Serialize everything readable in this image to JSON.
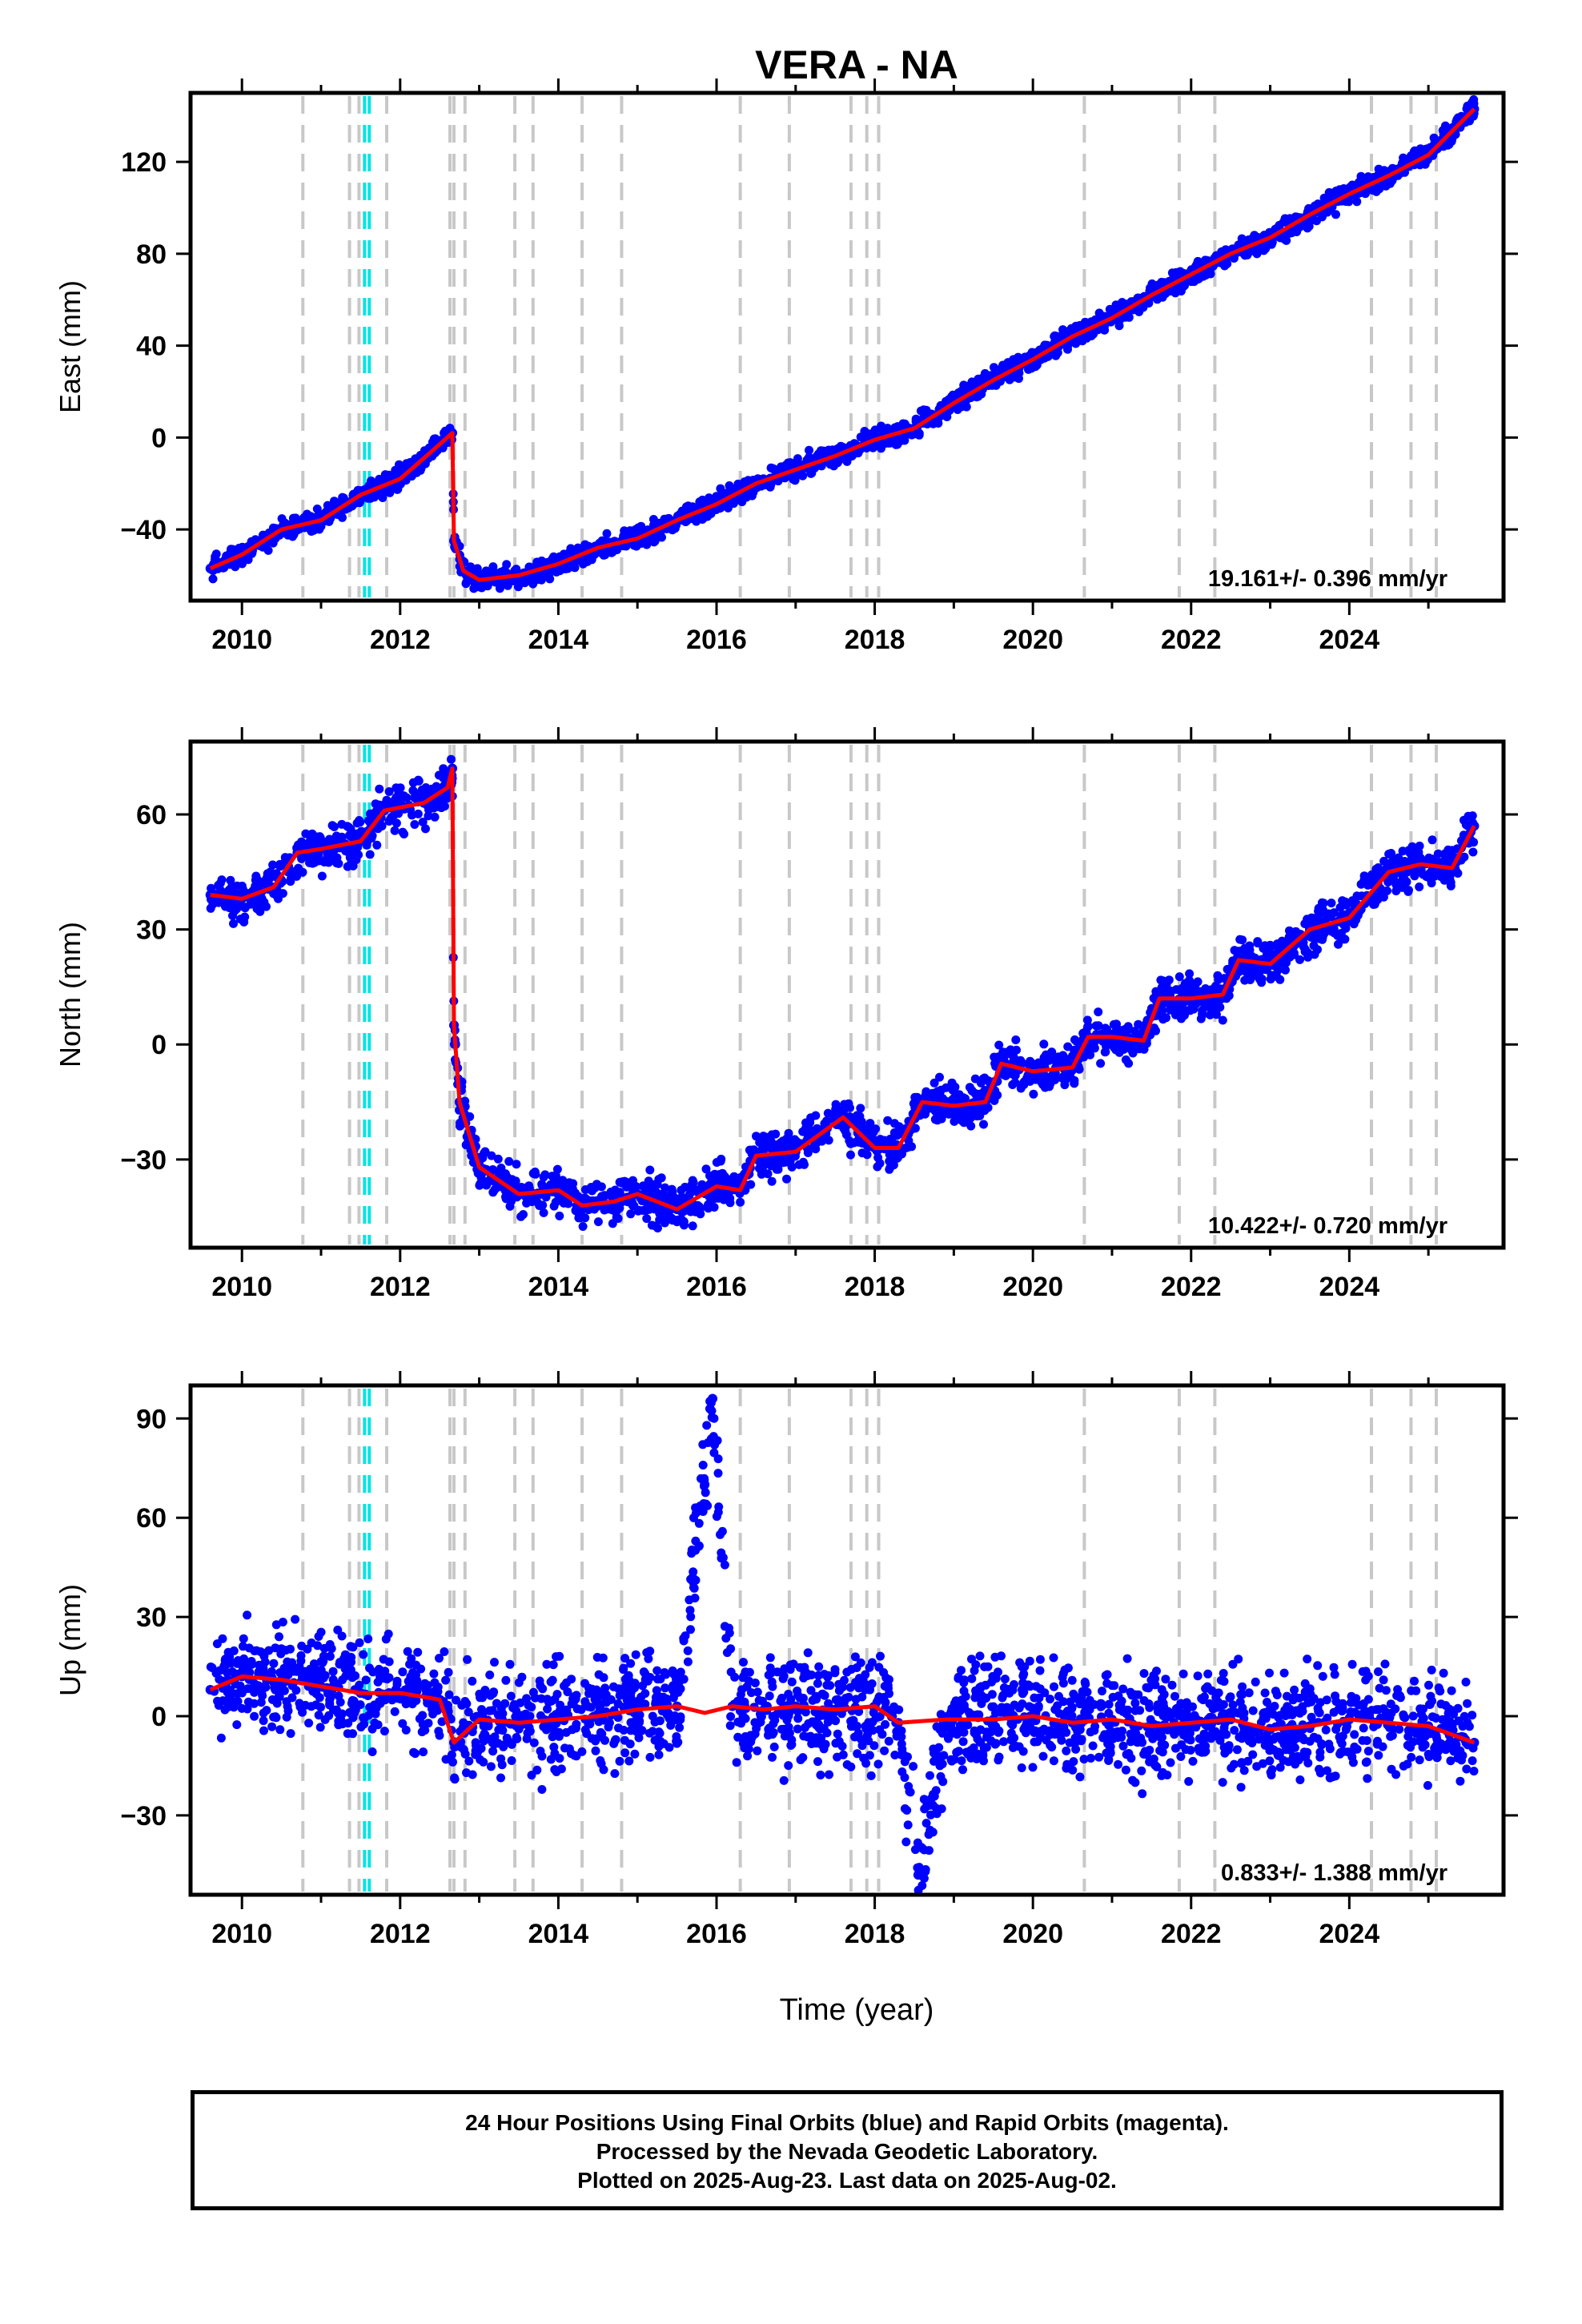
{
  "title": "VERA - NA",
  "xlabel": "Time (year)",
  "x_tick_labels": [
    "2010",
    "2012",
    "2014",
    "2016",
    "2018",
    "2020",
    "2022",
    "2024"
  ],
  "footer": {
    "line1": "24 Hour Positions Using Final Orbits (blue) and Rapid Orbits (magenta).",
    "line2": "Processed by the Nevada Geodetic Laboratory.",
    "line3": "Plotted on 2025-Aug-23. Last data on 2025-Aug-02."
  },
  "colors": {
    "points": "#0000ff",
    "model": "#ff0000",
    "equipment_change": "#c8c8c8",
    "earthquake_marker": "#00e5e5",
    "frame": "#000000"
  },
  "chart_data": [
    {
      "type": "scatter",
      "name": "east",
      "ylabel": "East (mm)",
      "rate_label": "19.161+/- 0.396 mm/yr",
      "xlim": [
        2009.35,
        2025.95
      ],
      "ylim": [
        -71,
        150
      ],
      "yticks": [
        -40,
        0,
        40,
        80,
        120
      ],
      "ytick_labels": [
        "−40",
        "0",
        "40",
        "80",
        "120"
      ],
      "series": [
        {
          "label": "daily positions",
          "x": [
            2009.6,
            2010.0,
            2010.5,
            2011.0,
            2011.5,
            2012.0,
            2012.4,
            2012.66,
            2012.68,
            2012.8,
            2013.0,
            2013.5,
            2014.0,
            2014.5,
            2015.0,
            2015.5,
            2016.0,
            2016.5,
            2017.0,
            2017.5,
            2018.0,
            2018.5,
            2019.0,
            2019.5,
            2020.0,
            2020.5,
            2021.0,
            2021.5,
            2022.0,
            2022.5,
            2023.0,
            2023.5,
            2024.0,
            2024.5,
            2025.0,
            2025.58
          ],
          "y": [
            -57,
            -51,
            -40,
            -36,
            -25,
            -18,
            -6,
            2,
            -45,
            -58,
            -62,
            -60,
            -55,
            -48,
            -44,
            -36,
            -29,
            -20,
            -14,
            -8,
            -1,
            4,
            15,
            25,
            34,
            44,
            52,
            62,
            71,
            80,
            87,
            97,
            106,
            114,
            123,
            143
          ]
        },
        {
          "label": "model",
          "x": [
            2009.6,
            2010.0,
            2010.5,
            2011.0,
            2011.5,
            2012.0,
            2012.4,
            2012.66,
            2012.68,
            2012.8,
            2013.0,
            2013.5,
            2014.0,
            2014.5,
            2015.0,
            2015.5,
            2016.0,
            2016.5,
            2017.0,
            2017.5,
            2018.0,
            2018.5,
            2019.0,
            2019.5,
            2020.0,
            2020.5,
            2021.0,
            2021.5,
            2022.0,
            2022.5,
            2023.0,
            2023.5,
            2024.0,
            2024.5,
            2025.0,
            2025.58
          ],
          "y": [
            -57,
            -51,
            -40,
            -36,
            -25,
            -18,
            -6,
            2,
            -45,
            -58,
            -62,
            -60,
            -55,
            -48,
            -44,
            -36,
            -29,
            -20,
            -14,
            -8,
            -1,
            4,
            15,
            25,
            34,
            44,
            52,
            62,
            71,
            80,
            87,
            97,
            106,
            114,
            123,
            143
          ]
        }
      ]
    },
    {
      "type": "scatter",
      "name": "north",
      "ylabel": "North (mm)",
      "rate_label": "10.422+/- 0.720 mm/yr",
      "xlim": [
        2009.35,
        2025.95
      ],
      "ylim": [
        -53,
        79
      ],
      "yticks": [
        -30,
        0,
        30,
        60
      ],
      "ytick_labels": [
        "−30",
        "0",
        "30",
        "60"
      ],
      "series": [
        {
          "label": "daily positions",
          "x": [
            2009.6,
            2010.0,
            2010.4,
            2010.7,
            2011.0,
            2011.5,
            2011.8,
            2012.3,
            2012.6,
            2012.66,
            2012.68,
            2012.75,
            2013.0,
            2013.5,
            2014.0,
            2014.3,
            2014.7,
            2015.0,
            2015.5,
            2016.0,
            2016.3,
            2016.5,
            2017.0,
            2017.6,
            2018.0,
            2018.3,
            2018.6,
            2019.0,
            2019.4,
            2019.6,
            2020.0,
            2020.5,
            2020.7,
            2021.0,
            2021.4,
            2021.6,
            2022.0,
            2022.4,
            2022.6,
            2023.0,
            2023.5,
            2024.0,
            2024.5,
            2024.9,
            2025.3,
            2025.58
          ],
          "y": [
            39,
            38,
            41,
            50,
            51,
            53,
            61,
            63,
            67,
            72,
            5,
            -15,
            -32,
            -39,
            -38,
            -42,
            -41,
            -39,
            -43,
            -37,
            -38,
            -29,
            -28,
            -19,
            -27,
            -27,
            -15,
            -16,
            -15,
            -5,
            -7,
            -6,
            2,
            2,
            1,
            12,
            12,
            13,
            22,
            21,
            30,
            33,
            45,
            47,
            46,
            57
          ]
        },
        {
          "label": "model",
          "x": [
            2009.6,
            2010.0,
            2010.4,
            2010.7,
            2011.0,
            2011.5,
            2011.8,
            2012.3,
            2012.6,
            2012.66,
            2012.68,
            2012.75,
            2013.0,
            2013.5,
            2014.0,
            2014.3,
            2014.7,
            2015.0,
            2015.5,
            2016.0,
            2016.3,
            2016.5,
            2017.0,
            2017.6,
            2018.0,
            2018.3,
            2018.6,
            2019.0,
            2019.4,
            2019.6,
            2020.0,
            2020.5,
            2020.7,
            2021.0,
            2021.4,
            2021.6,
            2022.0,
            2022.4,
            2022.6,
            2023.0,
            2023.5,
            2024.0,
            2024.5,
            2024.9,
            2025.3,
            2025.58
          ],
          "y": [
            39,
            38,
            41,
            50,
            51,
            53,
            61,
            63,
            67,
            72,
            5,
            -15,
            -32,
            -39,
            -38,
            -42,
            -41,
            -39,
            -43,
            -37,
            -38,
            -29,
            -28,
            -19,
            -27,
            -27,
            -15,
            -16,
            -15,
            -5,
            -7,
            -6,
            2,
            2,
            1,
            12,
            12,
            13,
            22,
            21,
            30,
            33,
            45,
            47,
            46,
            57
          ]
        }
      ]
    },
    {
      "type": "scatter",
      "name": "up",
      "ylabel": "Up (mm)",
      "rate_label": "0.833+/- 1.388 mm/yr",
      "xlim": [
        2009.35,
        2025.95
      ],
      "ylim": [
        -54,
        100
      ],
      "yticks": [
        -30,
        0,
        30,
        60,
        90
      ],
      "ytick_labels": [
        "−30",
        "0",
        "30",
        "60",
        "90"
      ],
      "series": [
        {
          "label": "daily positions",
          "x": [
            2009.6,
            2010.0,
            2010.5,
            2011.0,
            2011.5,
            2012.0,
            2012.5,
            2012.68,
            2013.0,
            2013.5,
            2014.0,
            2014.5,
            2015.0,
            2015.5,
            2015.85,
            2015.95,
            2016.2,
            2016.6,
            2017.0,
            2017.5,
            2018.0,
            2018.3,
            2018.55,
            2018.9,
            2019.5,
            2020.0,
            2020.5,
            2021.0,
            2021.5,
            2022.0,
            2022.5,
            2023.0,
            2023.5,
            2024.0,
            2024.5,
            2025.0,
            2025.58
          ],
          "y": [
            8,
            12,
            11,
            9,
            7,
            7,
            5,
            -8,
            -1,
            -2,
            -1,
            0,
            2,
            3,
            70,
            96,
            3,
            2,
            3,
            2,
            3,
            -2,
            -48,
            -1,
            -1,
            0,
            -2,
            -1,
            -3,
            -2,
            -1,
            -4,
            -3,
            -1,
            -2,
            -3,
            -8
          ]
        },
        {
          "label": "model",
          "x": [
            2009.6,
            2010.0,
            2010.5,
            2011.0,
            2011.5,
            2012.0,
            2012.5,
            2012.68,
            2013.0,
            2013.5,
            2014.0,
            2014.5,
            2015.0,
            2015.5,
            2015.85,
            2016.2,
            2016.6,
            2017.0,
            2017.5,
            2018.0,
            2018.3,
            2018.9,
            2019.5,
            2020.0,
            2020.5,
            2021.0,
            2021.5,
            2022.0,
            2022.5,
            2023.0,
            2023.5,
            2024.0,
            2024.5,
            2025.0,
            2025.58
          ],
          "y": [
            8,
            12,
            11,
            9,
            7,
            7,
            5,
            -8,
            -1,
            -2,
            -1,
            0,
            2,
            3,
            1,
            3,
            2,
            3,
            2,
            3,
            -2,
            -1,
            -1,
            0,
            -2,
            -1,
            -3,
            -2,
            -1,
            -4,
            -3,
            -1,
            -2,
            -3,
            -8
          ]
        }
      ]
    }
  ],
  "equipment_change_years": [
    2010.77,
    2011.36,
    2011.48,
    2011.83,
    2012.63,
    2012.68,
    2012.82,
    2013.45,
    2013.68,
    2014.3,
    2014.8,
    2016.3,
    2016.92,
    2017.7,
    2017.9,
    2018.05,
    2020.65,
    2021.85,
    2022.3,
    2024.28,
    2024.78,
    2025.1
  ],
  "earthquake_years": [
    2011.55,
    2011.61
  ]
}
